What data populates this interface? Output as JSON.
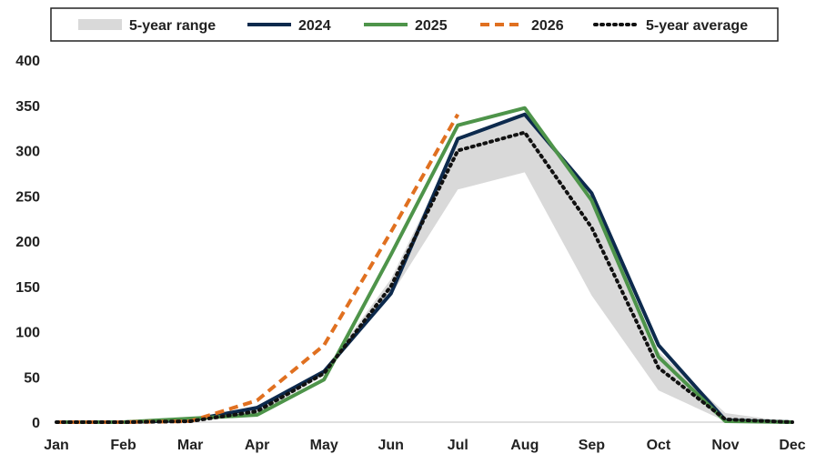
{
  "chart_data": {
    "type": "line",
    "title": "",
    "xlabel": "",
    "ylabel": "",
    "ylim": [
      0,
      400
    ],
    "yticks": [
      "0",
      "50",
      "100",
      "150",
      "200",
      "250",
      "300",
      "350",
      "400"
    ],
    "categories": [
      "Jan",
      "Feb",
      "Mar",
      "Apr",
      "May",
      "Jun",
      "Jul",
      "Aug",
      "Sep",
      "Oct",
      "Nov",
      "Dec"
    ],
    "legend_position": "top",
    "range": {
      "name": "5-year range",
      "color": "#d9d9d9",
      "low": [
        0,
        0,
        1,
        8,
        52,
        140,
        257,
        276,
        140,
        35,
        1,
        0
      ],
      "high": [
        0,
        0,
        2,
        18,
        57,
        158,
        310,
        340,
        248,
        78,
        10,
        0
      ]
    },
    "series": [
      {
        "name": "2024",
        "color": "#0d2a4d",
        "style": "solid",
        "values": [
          0,
          0,
          2,
          16,
          56,
          142,
          313,
          340,
          253,
          85,
          2,
          0
        ]
      },
      {
        "name": "2025",
        "color": "#4e944a",
        "style": "solid",
        "values": [
          0,
          0,
          4,
          8,
          47,
          185,
          328,
          347,
          245,
          72,
          1,
          0
        ]
      },
      {
        "name": "2026",
        "color": "#e07020",
        "style": "dashed",
        "values": [
          0,
          0,
          1,
          24,
          85,
          210,
          340,
          null,
          null,
          null,
          null,
          null
        ]
      },
      {
        "name": "5-year average",
        "color": "#111111",
        "style": "dotted",
        "values": [
          0,
          0,
          1,
          12,
          54,
          150,
          300,
          320,
          215,
          60,
          3,
          0
        ]
      }
    ]
  }
}
